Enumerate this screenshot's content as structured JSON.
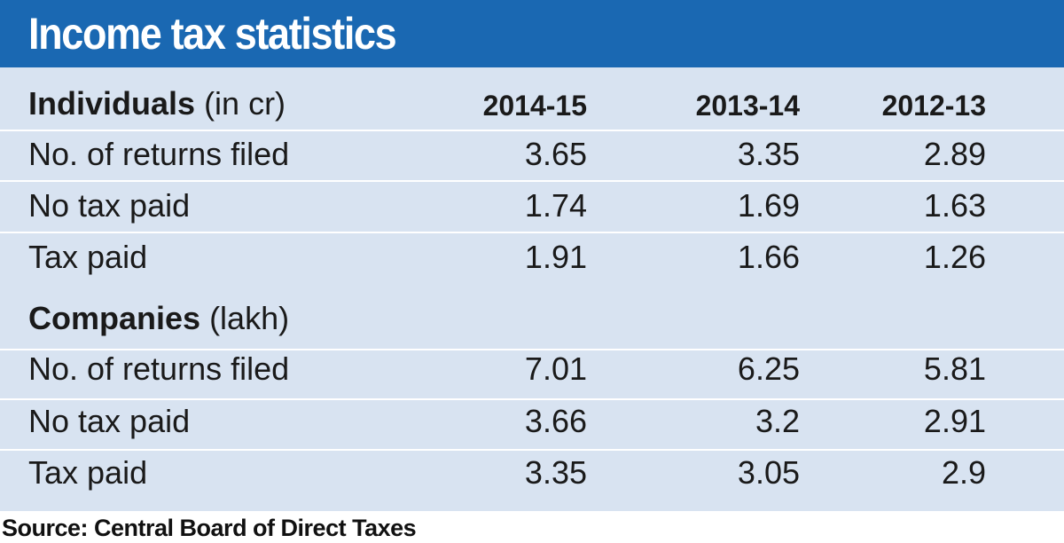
{
  "title": "Income tax statistics",
  "colors": {
    "header_bg": "#1a68b2",
    "table_bg": "#d8e3f1",
    "title_text": "#ffffff"
  },
  "chart_data": {
    "type": "table",
    "title": "Income tax statistics",
    "columns": [
      "2014-15",
      "2013-14",
      "2012-13"
    ],
    "sections": [
      {
        "name": "Individuals",
        "unit": "(in cr)",
        "rows": [
          {
            "label": "No. of returns filed",
            "values": [
              "3.65",
              "3.35",
              "2.89"
            ]
          },
          {
            "label": "No tax paid",
            "values": [
              "1.74",
              "1.69",
              "1.63"
            ]
          },
          {
            "label": "Tax paid",
            "values": [
              "1.91",
              "1.66",
              "1.26"
            ]
          }
        ]
      },
      {
        "name": "Companies",
        "unit": "(lakh)",
        "rows": [
          {
            "label": "No. of returns filed",
            "values": [
              "7.01",
              "6.25",
              "5.81"
            ]
          },
          {
            "label": "No tax paid",
            "values": [
              "3.66",
              "3.2",
              "2.91"
            ]
          },
          {
            "label": "Tax paid",
            "values": [
              "3.35",
              "3.05",
              "2.9"
            ]
          }
        ]
      }
    ],
    "source": "Source: Central Board of Direct Taxes"
  }
}
